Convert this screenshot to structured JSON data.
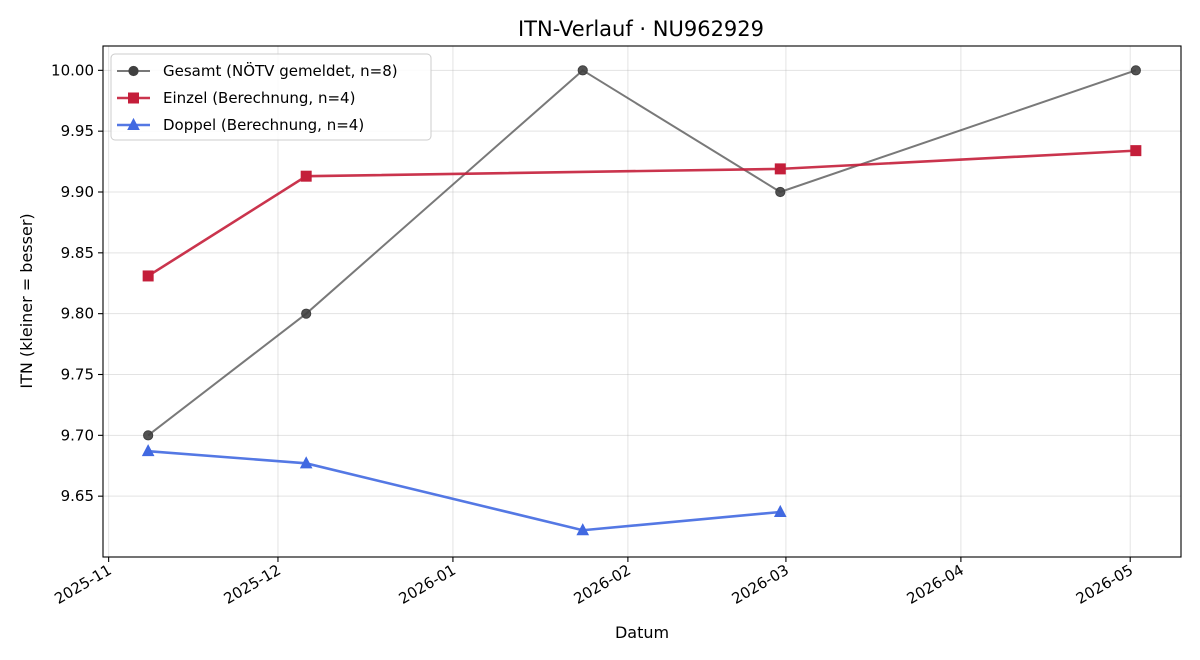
{
  "chart_data": {
    "type": "line",
    "title": "ITN-Verlauf · NU962929",
    "xlabel": "Datum",
    "ylabel": "ITN  (kleiner = besser)",
    "x_ticks": [
      "2025-11",
      "2025-12",
      "2026-01",
      "2026-02",
      "2026-03",
      "2026-04",
      "2026-05"
    ],
    "xlim": [
      "2025-10-31",
      "2026-05-10"
    ],
    "y_ticks": [
      "9.65",
      "9.70",
      "9.75",
      "9.80",
      "9.85",
      "9.90",
      "9.95",
      "10.00"
    ],
    "ylim": [
      9.6,
      10.02
    ],
    "grid": true,
    "legend_position": "top-left",
    "series": [
      {
        "name": "Gesamt (NÖTV gemeldet, n=8)",
        "color": "#404040",
        "marker": "circle",
        "x": [
          "2025-11-08",
          "2025-12-06",
          "2026-01-24",
          "2026-02-28",
          "2026-05-02"
        ],
        "values": [
          9.7,
          9.8,
          10.0,
          9.9,
          10.0
        ]
      },
      {
        "name": "Einzel (Berechnung, n=4)",
        "color": "#c41e3a",
        "marker": "square",
        "x": [
          "2025-11-08",
          "2025-12-06",
          "2026-02-28",
          "2026-05-02"
        ],
        "values": [
          9.831,
          9.913,
          9.919,
          9.934
        ]
      },
      {
        "name": "Doppel (Berechnung, n=4)",
        "color": "#4169e1",
        "marker": "triangle",
        "x": [
          "2025-11-08",
          "2025-12-06",
          "2026-01-24",
          "2026-02-28"
        ],
        "values": [
          9.687,
          9.677,
          9.622,
          9.637
        ]
      }
    ]
  }
}
